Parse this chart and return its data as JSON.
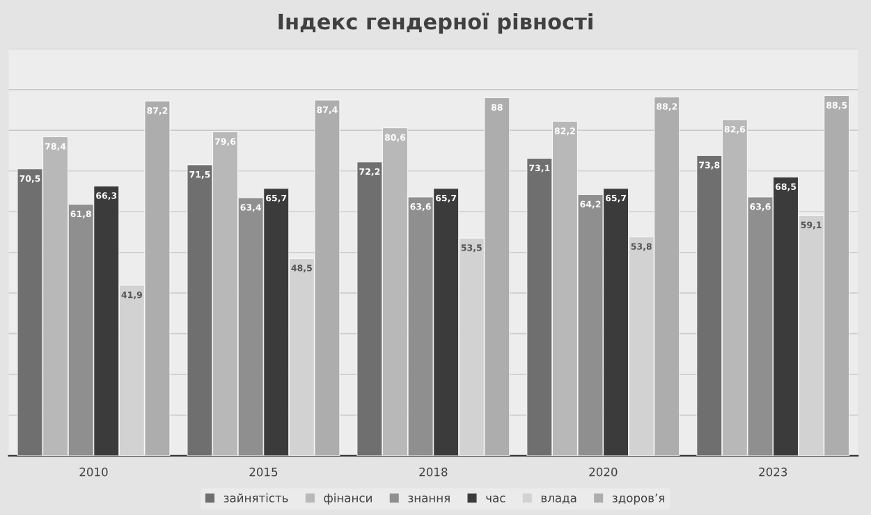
{
  "chart_data": {
    "type": "bar",
    "title": "Індекс гендерної рівності",
    "categories": [
      "2010",
      "2015",
      "2018",
      "2020",
      "2023"
    ],
    "series": [
      {
        "name": "зайнятість",
        "color": "#6f6f6f",
        "values": [
          70.5,
          71.5,
          72.2,
          73.1,
          73.8
        ],
        "value_labels": [
          "70,5",
          "71,5",
          "72,2",
          "73,1",
          "73,8"
        ]
      },
      {
        "name": "фінанси",
        "color": "#b8b8b8",
        "values": [
          78.4,
          79.6,
          80.6,
          82.2,
          82.6
        ],
        "value_labels": [
          "78,4",
          "79,6",
          "80,6",
          "82,2",
          "82,6"
        ]
      },
      {
        "name": "знання",
        "color": "#8f8f8f",
        "values": [
          61.8,
          63.4,
          63.6,
          64.2,
          63.6
        ],
        "value_labels": [
          "61,8",
          "63,4",
          "63,6",
          "64,2",
          "63,6"
        ]
      },
      {
        "name": "час",
        "color": "#3b3b3b",
        "values": [
          66.3,
          65.7,
          65.7,
          65.7,
          68.5
        ],
        "value_labels": [
          "66,3",
          "65,7",
          "65,7",
          "65,7",
          "68,5"
        ]
      },
      {
        "name": "влада",
        "color": "#d2d2d2",
        "values": [
          41.9,
          48.5,
          53.5,
          53.8,
          59.1
        ],
        "value_labels": [
          "41,9",
          "48,5",
          "53,5",
          "53,8",
          "59,1"
        ]
      },
      {
        "name": "здоров’я",
        "color": "#adadad",
        "values": [
          87.2,
          87.4,
          88,
          88.2,
          88.5
        ],
        "value_labels": [
          "87,2",
          "87,4",
          "88",
          "88,2",
          "88,5"
        ]
      }
    ],
    "ylim": [
      0,
      100
    ],
    "yticks": [
      {
        "value": 0,
        "label": null
      },
      {
        "value": 10,
        "label": null
      },
      {
        "value": 20,
        "label": null
      },
      {
        "value": 30,
        "label": null
      },
      {
        "value": 40,
        "label": null
      },
      {
        "value": 50,
        "label": null
      },
      {
        "value": 60,
        "label": null
      },
      {
        "value": 70,
        "label": null
      },
      {
        "value": 80,
        "label": null
      },
      {
        "value": 90,
        "label": null
      },
      {
        "value": 100,
        "label": null
      }
    ],
    "tick_labels": "x",
    "grid": "y",
    "legend": "bottom"
  }
}
